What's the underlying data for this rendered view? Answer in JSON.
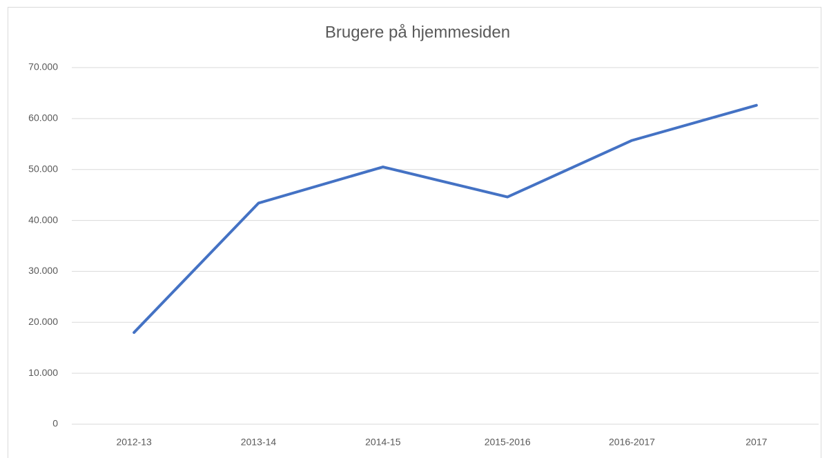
{
  "chart_data": {
    "type": "line",
    "title": "Brugere på hjemmesiden",
    "categories": [
      "2012-13",
      "2013-14",
      "2014-15",
      "2015-2016",
      "2016-2017",
      "2017"
    ],
    "values": [
      18000,
      43400,
      50500,
      44600,
      55700,
      62600
    ],
    "color": "#4472c4",
    "ylim": [
      0,
      70000
    ],
    "yticks": [
      0,
      {
        "value": 10000,
        "label": "10.000"
      },
      {
        "value": 20000,
        "label": "20.000"
      },
      {
        "value": 30000,
        "label": "30.000"
      },
      {
        "value": 40000,
        "label": "40.000"
      },
      {
        "value": 50000,
        "label": "50.000"
      },
      {
        "value": 60000,
        "label": "60.000"
      },
      {
        "value": 70000,
        "label": "70.000"
      }
    ],
    "grid": true
  }
}
